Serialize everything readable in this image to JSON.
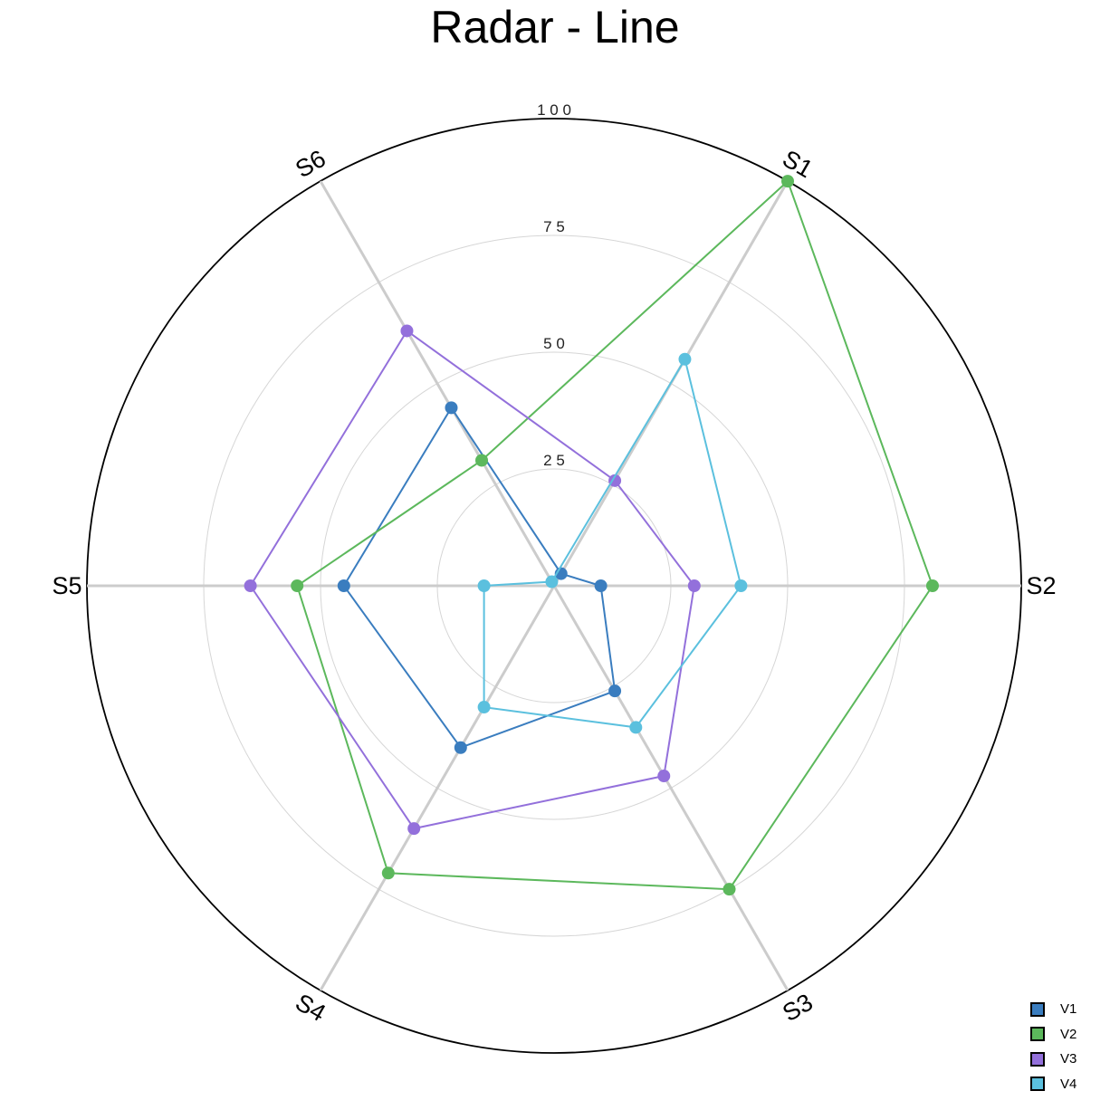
{
  "chart_data": {
    "type": "radar",
    "title": "Radar - Line",
    "axes": [
      "S1",
      "S2",
      "S3",
      "S4",
      "S5",
      "S6"
    ],
    "rlim": [
      0,
      100
    ],
    "r_ticks": [
      25,
      50,
      75,
      100
    ],
    "r_tick_labels": [
      "2 5",
      "5 0",
      "7 5",
      "1 0 0"
    ],
    "grid": true,
    "legend_position": "bottom-right",
    "series": [
      {
        "name": "V1",
        "color": "#3a7dbf",
        "values": [
          3,
          10,
          26,
          40,
          45,
          44
        ]
      },
      {
        "name": "V2",
        "color": "#5cb85c",
        "values": [
          100,
          81,
          75,
          71,
          55,
          31
        ]
      },
      {
        "name": "V3",
        "color": "#9370db",
        "values": [
          26,
          30,
          47,
          60,
          65,
          63
        ]
      },
      {
        "name": "V4",
        "color": "#5bc0de",
        "values": [
          56,
          40,
          35,
          30,
          15,
          1
        ]
      }
    ]
  }
}
